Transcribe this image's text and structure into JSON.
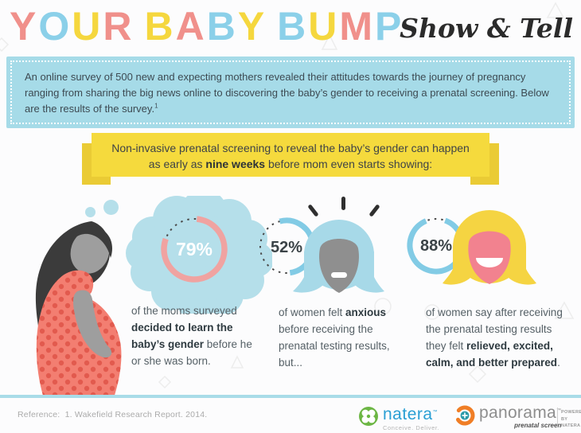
{
  "header": {
    "title_letters": [
      {
        "ch": "Y",
        "color": "#F0908B"
      },
      {
        "ch": "O",
        "color": "#8BD0E9"
      },
      {
        "ch": "U",
        "color": "#F5D73E"
      },
      {
        "ch": "R",
        "color": "#F0908B"
      },
      {
        "ch": " "
      },
      {
        "ch": "B",
        "color": "#F5D73E"
      },
      {
        "ch": "A",
        "color": "#F0908B"
      },
      {
        "ch": "B",
        "color": "#8BD0E9"
      },
      {
        "ch": "Y",
        "color": "#F5D73E"
      },
      {
        "ch": " "
      },
      {
        "ch": "B",
        "color": "#8BD0E9"
      },
      {
        "ch": "U",
        "color": "#F5D73E"
      },
      {
        "ch": "M",
        "color": "#F0908B"
      },
      {
        "ch": "P",
        "color": "#8BD0E9"
      }
    ],
    "subtitle": "Show & Tell"
  },
  "intro": {
    "text": "An online survey of 500 new and expecting mothers revealed their attitudes towards the journey of pregnancy ranging from sharing the big news online to discovering the baby’s gender to receiving a prenatal screening. Below are the results of the survey.",
    "footnote": "1"
  },
  "ribbon": {
    "line1": "Non-invasive prenatal screening to reveal the baby’s gender can happen",
    "line2_pre": "as early as ",
    "line2_bold": "nine weeks",
    "line2_post": " before mom even starts showing:"
  },
  "stats": [
    {
      "value": "79%",
      "pct": 79,
      "ring_color": "#F0A3A1",
      "text_pre": "of the moms surveyed ",
      "text_bold": "decided to learn the baby’s gender",
      "text_post": " before he or she was born."
    },
    {
      "value": "52%",
      "pct": 52,
      "ring_color": "#82CBE5",
      "text_pre": "of women felt ",
      "text_bold": "anxious",
      "text_post": " before receiving the prenatal testing results, but..."
    },
    {
      "value": "88%",
      "pct": 88,
      "ring_color": "#82CBE5",
      "text_pre": "of women say after receiving the prenatal testing results they felt ",
      "text_bold": "relieved, excited, calm, and better prepared",
      "text_post": "."
    }
  ],
  "footer": {
    "reference_label": "Reference:",
    "reference_text": "1. Wakefield Research Report. 2014.",
    "natera": {
      "name": "natera",
      "mark": "™",
      "tagline": "Conceive. Deliver."
    },
    "panorama": {
      "name": "panorama",
      "mark": "™",
      "tagline": "prenatal screen",
      "powered_by": [
        "POWERED",
        "BY",
        "NATERA"
      ]
    }
  },
  "colors": {
    "coral": "#F0908B",
    "blue": "#8BD0E9",
    "yellow": "#F5D73E",
    "intro_bg": "#A6DBE8",
    "ribbon_bg": "#F5DA3D",
    "cloud": "#B5DFEA",
    "dress": "#F37E71",
    "dress_dots": "#E25A4E",
    "skin_gray": "#979797"
  }
}
